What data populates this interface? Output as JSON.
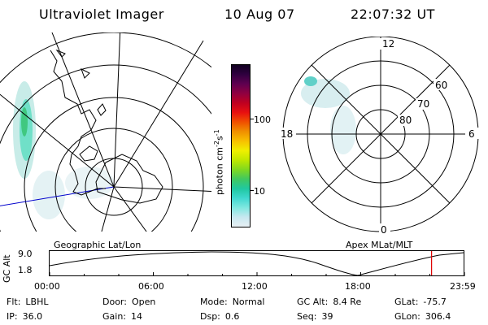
{
  "header": {
    "title": "Ultraviolet Imager",
    "date": "10 Aug 07",
    "time": "22:07:32 UT"
  },
  "left_map": {
    "caption": "Geographic Lat/Lon"
  },
  "right_map": {
    "caption": "Apex MLat/MLT",
    "mlt_labels": [
      "12",
      "18",
      "6",
      "0"
    ],
    "mlat_labels": [
      "60",
      "70",
      "80"
    ]
  },
  "colorbar": {
    "unit_label": "photon cm",
    "unit_sup1": "-2",
    "unit_s": "s",
    "unit_sup2": "-1",
    "tick_labels": [
      "100",
      "10"
    ],
    "colors": [
      "#e8f0f4",
      "#c8e8f0",
      "#80e8e0",
      "#40d8d0",
      "#20c8a0",
      "#40c860",
      "#80d820",
      "#c0e800",
      "#f0f000",
      "#f8c000",
      "#f09000",
      "#f05000",
      "#e81010",
      "#c00020",
      "#900040",
      "#600050",
      "#300040",
      "#100020"
    ]
  },
  "timeline": {
    "y_axis_label": "GC Alt",
    "y_ticks": [
      "9.0",
      "1.8"
    ],
    "x_ticks": [
      "00:00",
      "06:00",
      "12:00",
      "18:00",
      "23:59"
    ],
    "current_marker_hour": 22.1
  },
  "info": {
    "row1": [
      {
        "label": "Flt:",
        "value": "LBHL"
      },
      {
        "label": "Door:",
        "value": "Open"
      },
      {
        "label": "Mode:",
        "value": "Normal"
      },
      {
        "label": "GC Alt:",
        "value": "8.4 Re"
      },
      {
        "label": "GLat:",
        "value": "-75.7"
      }
    ],
    "row2": [
      {
        "label": "IP:",
        "value": "36.0"
      },
      {
        "label": "Gain:",
        "value": "14"
      },
      {
        "label": "Dsp:",
        "value": "0.6"
      },
      {
        "label": "Seq:",
        "value": "39"
      },
      {
        "label": "GLon:",
        "value": "306.4"
      }
    ]
  }
}
